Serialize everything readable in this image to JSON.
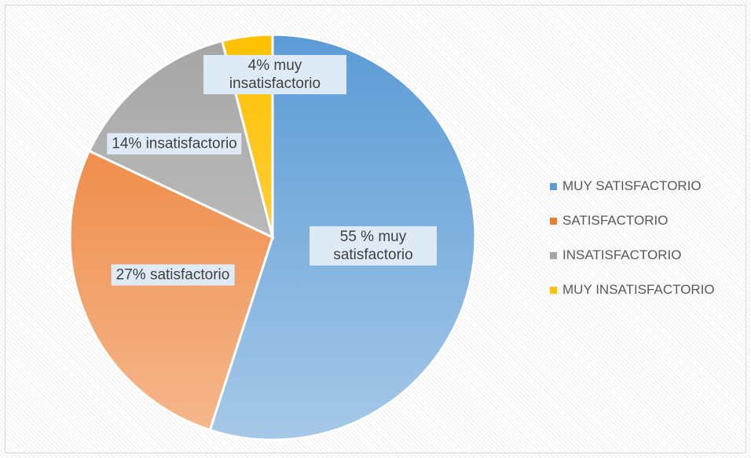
{
  "chart_data": {
    "type": "pie",
    "categories": [
      "MUY SATISFACTORIO",
      "SATISFACTORIO",
      "INSATISFACTORIO",
      "MUY INSATISFACTORIO"
    ],
    "values": [
      55,
      27,
      14,
      4
    ],
    "value_labels": [
      "55 % muy satisfactorio",
      "27% satisfactorio",
      "14% insatisfactorio",
      "4% muy insatisfactorio"
    ],
    "colors": [
      "#5b9bd5",
      "#ed7d31",
      "#a5a5a5",
      "#ffc000"
    ],
    "legend": "right"
  }
}
